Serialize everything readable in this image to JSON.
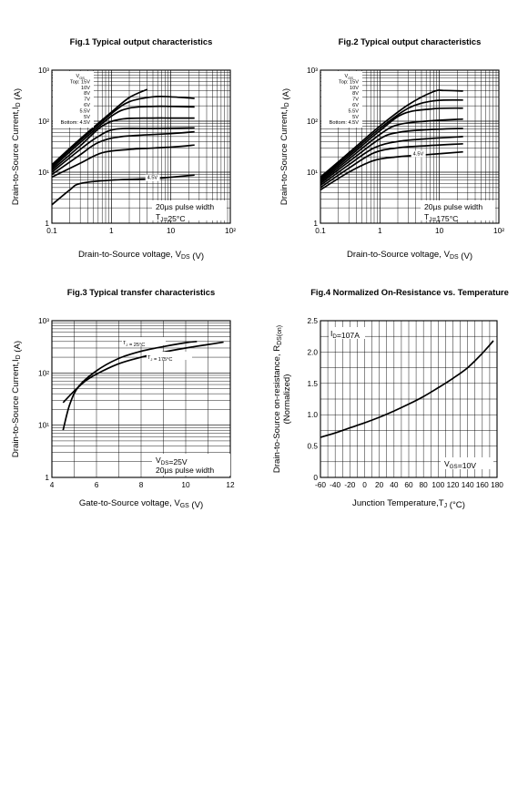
{
  "chart_data": [
    {
      "type": "line",
      "title": "Fig.1 Typical output characteristics",
      "xlabel": "Drain-to-Source voltage, V",
      "xlabel_sub": "DS",
      "xlabel_unit": " (V)",
      "ylabel": "Drain-to-Source Current,I",
      "ylabel_sub": "D",
      "ylabel_unit": " (A)",
      "xscale": "log",
      "yscale": "log",
      "xlim": [
        0.1,
        100
      ],
      "ylim": [
        1,
        1000
      ],
      "x_ticks": [
        0.1,
        1,
        10,
        100
      ],
      "x_tick_labels": [
        "0.1",
        "1",
        "10",
        "10²"
      ],
      "y_tick_labels": [
        "1",
        "10¹",
        "10²",
        "10³"
      ],
      "legend_lines": [
        "V GS",
        "Top: 15V",
        "10V",
        "8V",
        "7V",
        "6V",
        "5.5V",
        "5V",
        "Bottom: 4.5V"
      ],
      "curve_label": "4.5V",
      "notes": [
        "20µs pulse width",
        "T J=25°C"
      ],
      "series": [
        {
          "name": "15V",
          "x": [
            0.1,
            0.3,
            1,
            2,
            4
          ],
          "values": [
            14,
            45,
            150,
            290,
            420
          ]
        },
        {
          "name": "10V",
          "x": [
            0.1,
            0.3,
            1,
            2,
            5,
            10,
            25
          ],
          "values": [
            13,
            42,
            140,
            240,
            300,
            300,
            280
          ]
        },
        {
          "name": "8V",
          "x": [
            0.1,
            0.3,
            1,
            2,
            5,
            10,
            25
          ],
          "values": [
            12,
            38,
            125,
            180,
            195,
            195,
            190
          ]
        },
        {
          "name": "7V",
          "x": [
            0.1,
            0.3,
            0.7,
            1.5,
            5,
            10,
            25
          ],
          "values": [
            11,
            33,
            80,
            110,
            115,
            115,
            115
          ]
        },
        {
          "name": "6V",
          "x": [
            0.1,
            0.3,
            0.6,
            1.2,
            5,
            25
          ],
          "values": [
            10,
            28,
            50,
            70,
            72,
            74
          ]
        },
        {
          "name": "5.5V",
          "x": [
            0.1,
            0.3,
            0.6,
            1.5,
            10,
            25
          ],
          "values": [
            9,
            22,
            38,
            50,
            57,
            62
          ]
        },
        {
          "name": "5V",
          "x": [
            0.1,
            0.3,
            0.7,
            2,
            10,
            25
          ],
          "values": [
            8,
            15,
            24,
            28,
            31,
            34
          ]
        },
        {
          "name": "4.5V",
          "x": [
            0.1,
            0.2,
            0.3,
            1,
            5,
            25
          ],
          "values": [
            2.3,
            4.5,
            6,
            7,
            7.5,
            8.8
          ]
        }
      ]
    },
    {
      "type": "line",
      "title": "Fig.2 Typical output characteristics",
      "xlabel": "Drain-to-Source voltage, V",
      "xlabel_sub": "DS",
      "xlabel_unit": " (V)",
      "ylabel": "Drain-to-Source Current,I",
      "ylabel_sub": "D",
      "ylabel_unit": " (A)",
      "xscale": "log",
      "yscale": "log",
      "xlim": [
        0.1,
        100
      ],
      "ylim": [
        1,
        1000
      ],
      "x_ticks": [
        0.1,
        1,
        10,
        100
      ],
      "x_tick_labels": [
        "0.1",
        "1",
        "10",
        "10²"
      ],
      "y_tick_labels": [
        "1",
        "10¹",
        "10²",
        "10³"
      ],
      "legend_lines": [
        "V GS",
        "Top: 15V",
        "10V",
        "8V",
        "7V",
        "6V",
        "5.5V",
        "5V",
        "Bottom: 4.5V"
      ],
      "curve_label": "4.5V",
      "notes": [
        "20µs pulse width",
        "T J=175°C"
      ],
      "series": [
        {
          "name": "15V",
          "x": [
            0.1,
            0.3,
            1,
            3,
            8,
            12,
            25
          ],
          "values": [
            8,
            24,
            80,
            210,
            380,
            400,
            390
          ]
        },
        {
          "name": "10V",
          "x": [
            0.1,
            0.3,
            1,
            3,
            8,
            25
          ],
          "values": [
            7.5,
            22,
            72,
            180,
            250,
            260
          ]
        },
        {
          "name": "8V",
          "x": [
            0.1,
            0.3,
            1,
            2.5,
            8,
            25
          ],
          "values": [
            7,
            20,
            65,
            140,
            175,
            180
          ]
        },
        {
          "name": "7V",
          "x": [
            0.1,
            0.3,
            1,
            2,
            6,
            25
          ],
          "values": [
            6.5,
            18,
            55,
            85,
            100,
            110
          ]
        },
        {
          "name": "6V",
          "x": [
            0.1,
            0.3,
            1,
            2,
            6,
            25
          ],
          "values": [
            6,
            16,
            45,
            60,
            68,
            72
          ]
        },
        {
          "name": "5.5V",
          "x": [
            0.1,
            0.3,
            0.8,
            2,
            6,
            25
          ],
          "values": [
            5.5,
            14,
            30,
            40,
            45,
            50
          ]
        },
        {
          "name": "5V",
          "x": [
            0.1,
            0.3,
            0.8,
            2,
            6,
            25
          ],
          "values": [
            5,
            12,
            24,
            30,
            33,
            36
          ]
        },
        {
          "name": "4.5V",
          "x": [
            0.1,
            0.3,
            0.8,
            2,
            6,
            25
          ],
          "values": [
            4.5,
            10,
            17,
            20,
            22,
            25
          ]
        }
      ]
    },
    {
      "type": "line",
      "title": "Fig.3 Typical transfer characteristics",
      "xlabel": "Gate-to-Source voltage, V",
      "xlabel_sub": "GS",
      "xlabel_unit": " (V)",
      "ylabel": "Drain-to-Source Current,I",
      "ylabel_sub": "D",
      "ylabel_unit": " (A)",
      "xscale": "linear",
      "yscale": "log",
      "xlim": [
        4,
        12
      ],
      "ylim": [
        1,
        1000
      ],
      "x_ticks": [
        4,
        6,
        8,
        10,
        12
      ],
      "x_tick_labels": [
        "4",
        "6",
        "8",
        "10",
        "12"
      ],
      "y_tick_labels": [
        "1",
        "10¹",
        "10²",
        "10³"
      ],
      "curve_labels": [
        "T J = 25°C",
        "T J = 175°C"
      ],
      "notes": [
        "V DS=25V",
        "20µs pulse width"
      ],
      "series": [
        {
          "name": "TJ = 25°C",
          "x": [
            4.5,
            4.8,
            5.2,
            6,
            7,
            8,
            9,
            10,
            10.5
          ],
          "values": [
            8,
            25,
            55,
            110,
            190,
            260,
            320,
            380,
            400
          ]
        },
        {
          "name": "TJ = 175°C",
          "x": [
            4.5,
            5,
            5.5,
            6,
            7,
            8,
            9,
            10,
            11,
            11.7
          ],
          "values": [
            27,
            45,
            70,
            95,
            150,
            200,
            250,
            300,
            350,
            390
          ]
        }
      ]
    },
    {
      "type": "line",
      "title": "Fig.4 Normalized On-Resistance vs. Temperature",
      "xlabel": "Junction Temperature,T",
      "xlabel_sub": "J",
      "xlabel_unit": " (°C)",
      "ylabel": "Drain-to-Source on-resistance, R",
      "ylabel_sub": "DS(on)",
      "ylabel2": "(Normalized)",
      "xscale": "linear",
      "yscale": "linear",
      "xlim": [
        -60,
        180
      ],
      "ylim": [
        0,
        2.5
      ],
      "x_ticks": [
        -60,
        -40,
        -20,
        0,
        20,
        40,
        60,
        80,
        100,
        120,
        140,
        160,
        180
      ],
      "x_tick_labels": [
        "-60",
        "-40",
        "-20",
        "0",
        "20",
        "40",
        "60",
        "80",
        "100",
        "120",
        "140",
        "160",
        "180"
      ],
      "y_ticks": [
        0,
        0.5,
        1.0,
        1.5,
        2.0,
        2.5
      ],
      "y_tick_labels": [
        "0",
        "0.5",
        "1.0",
        "1.5",
        "2.0",
        "2.5"
      ],
      "notes": [
        "I D=107A",
        "V GS=10V"
      ],
      "series": [
        {
          "name": "RDS(on)",
          "x": [
            -60,
            -40,
            -20,
            0,
            20,
            40,
            60,
            80,
            100,
            120,
            140,
            160,
            175
          ],
          "values": [
            0.64,
            0.71,
            0.79,
            0.87,
            0.96,
            1.06,
            1.17,
            1.29,
            1.43,
            1.58,
            1.75,
            1.98,
            2.18
          ]
        }
      ]
    }
  ]
}
